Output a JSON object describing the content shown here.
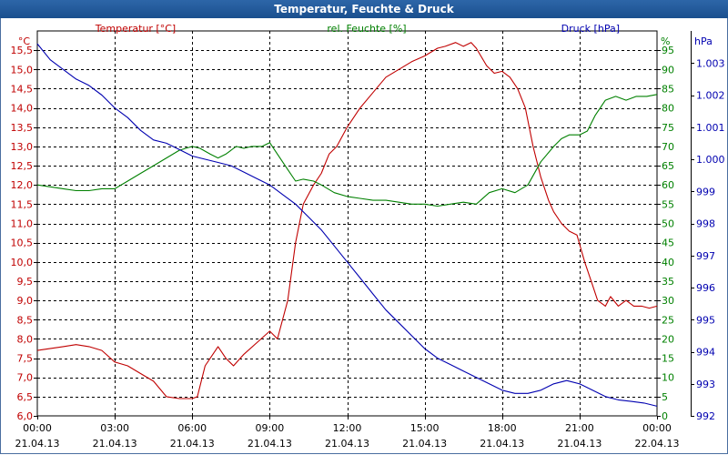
{
  "window": {
    "title": "Temperatur, Feuchte & Druck"
  },
  "colors": {
    "temperature": "#c00000",
    "humidity": "#008000",
    "pressure": "#0000b0",
    "grid": "#000000"
  },
  "chart_data": {
    "type": "line",
    "title": "Temperatur, Feuchte & Druck",
    "x_labels": [
      {
        "time": "00:00",
        "date": "21.04.13"
      },
      {
        "time": "03:00",
        "date": "21.04.13"
      },
      {
        "time": "06:00",
        "date": "21.04.13"
      },
      {
        "time": "09:00",
        "date": "21.04.13"
      },
      {
        "time": "12:00",
        "date": "21.04.13"
      },
      {
        "time": "15:00",
        "date": "21.04.13"
      },
      {
        "time": "18:00",
        "date": "21.04.13"
      },
      {
        "time": "21:00",
        "date": "21.04.13"
      },
      {
        "time": "00:00",
        "date": "22.04.13"
      }
    ],
    "xlim": [
      0,
      24
    ],
    "axes": {
      "temperature": {
        "label": "Temperatur [°C]",
        "unit": "°C",
        "range": [
          6.0,
          16.0
        ],
        "ticks": [
          "15,5",
          "15,0",
          "14,5",
          "14,0",
          "13,5",
          "13,0",
          "12,5",
          "12,0",
          "11,5",
          "11,0",
          "10,5",
          "10,0",
          "9,5",
          "9,0",
          "8,5",
          "8,0",
          "7,5",
          "7,0",
          "6,5",
          "6,0"
        ]
      },
      "humidity": {
        "label": "rel. Feuchte [%]",
        "unit": "%",
        "range": [
          0,
          100
        ],
        "ticks": [
          "95",
          "90",
          "85",
          "80",
          "75",
          "70",
          "65",
          "60",
          "55",
          "50",
          "45",
          "40",
          "35",
          "30",
          "25",
          "20",
          "15",
          "10",
          "5",
          "0"
        ]
      },
      "pressure": {
        "label": "Druck [hPa]",
        "unit": "hPa",
        "range": [
          992,
          1004
        ],
        "ticks": [
          "1.003",
          "1.002",
          "1.001",
          "1.000",
          "999",
          "998",
          "997",
          "996",
          "995",
          "994",
          "993",
          "992"
        ]
      }
    },
    "series": [
      {
        "name": "Temperatur [°C]",
        "axis": "temperature",
        "x": [
          0,
          1,
          1.5,
          2,
          2.5,
          3,
          3.5,
          4,
          4.5,
          5,
          5.5,
          6,
          6.2,
          6.5,
          7,
          7.3,
          7.6,
          8,
          8.5,
          9,
          9.3,
          9.7,
          10,
          10.3,
          10.7,
          11,
          11.3,
          11.6,
          12,
          12.5,
          13,
          13.5,
          14,
          14.5,
          15,
          15.5,
          15.8,
          16.2,
          16.5,
          16.8,
          17,
          17.4,
          17.7,
          18,
          18.3,
          18.6,
          18.9,
          19.2,
          19.5,
          19.8,
          20,
          20.3,
          20.6,
          20.9,
          21.2,
          21.5,
          21.7,
          22,
          22.2,
          22.5,
          22.8,
          23.1,
          23.4,
          23.7,
          24
        ],
        "values": [
          7.7,
          7.8,
          7.85,
          7.8,
          7.7,
          7.4,
          7.3,
          7.1,
          6.9,
          6.5,
          6.45,
          6.45,
          6.5,
          7.3,
          7.8,
          7.5,
          7.3,
          7.6,
          7.9,
          8.2,
          8.0,
          9.0,
          10.5,
          11.5,
          12.0,
          12.3,
          12.8,
          13.0,
          13.5,
          14.0,
          14.4,
          14.8,
          15.0,
          15.2,
          15.35,
          15.55,
          15.6,
          15.7,
          15.6,
          15.7,
          15.55,
          15.1,
          14.9,
          14.95,
          14.8,
          14.5,
          14.0,
          13.0,
          12.2,
          11.6,
          11.3,
          11.0,
          10.8,
          10.7,
          10.0,
          9.4,
          9.0,
          8.85,
          9.1,
          8.85,
          9.0,
          8.85,
          8.85,
          8.8,
          8.85
        ]
      },
      {
        "name": "rel. Feuchte [%]",
        "axis": "humidity",
        "x": [
          0,
          1,
          1.5,
          2,
          2.5,
          3,
          3.5,
          4,
          4.5,
          5,
          5.5,
          6,
          6.3,
          6.7,
          7,
          7.3,
          7.7,
          8,
          8.3,
          8.7,
          9,
          9.3,
          9.7,
          10,
          10.3,
          10.7,
          11,
          11.5,
          12,
          12.5,
          13,
          13.5,
          14,
          14.5,
          15,
          15.5,
          16,
          16.5,
          17,
          17.5,
          18,
          18.5,
          19,
          19.5,
          20,
          20.3,
          20.6,
          21,
          21.3,
          21.6,
          22,
          22.4,
          22.8,
          23.2,
          23.6,
          24
        ],
        "values": [
          60,
          59,
          58.5,
          58.5,
          59,
          59,
          61,
          63,
          65,
          67,
          69,
          70,
          69.5,
          68,
          67,
          68,
          70,
          69.5,
          70,
          70,
          71,
          68,
          64,
          61,
          61.5,
          61,
          60,
          58,
          57,
          56.5,
          56,
          56,
          55.5,
          55,
          55,
          54.5,
          55,
          55.5,
          55,
          58,
          59,
          58,
          60,
          66,
          70,
          72,
          73,
          73,
          74,
          78,
          82,
          83,
          82,
          83,
          83,
          83.5
        ]
      },
      {
        "name": "Druck [hPa]",
        "axis": "pressure",
        "x": [
          0,
          0.5,
          1,
          1.5,
          2,
          2.5,
          3,
          3.5,
          4,
          4.5,
          5,
          5.5,
          6,
          6.5,
          7,
          7.5,
          8,
          8.5,
          9,
          9.5,
          10,
          10.5,
          11,
          11.5,
          12,
          12.5,
          13,
          13.5,
          14,
          14.5,
          15,
          15.5,
          16,
          16.5,
          17,
          17.5,
          18,
          18.5,
          19,
          19.5,
          20,
          20.5,
          21,
          21.5,
          22,
          22.5,
          23,
          23.5,
          24
        ],
        "values": [
          1003.6,
          1003.1,
          1002.8,
          1002.5,
          1002.3,
          1002.0,
          1001.6,
          1001.3,
          1000.9,
          1000.6,
          1000.5,
          1000.3,
          1000.1,
          1000.0,
          999.9,
          999.8,
          999.6,
          999.4,
          999.2,
          998.9,
          998.6,
          998.2,
          997.8,
          997.3,
          996.8,
          996.3,
          995.8,
          995.3,
          994.9,
          994.5,
          994.1,
          993.8,
          993.6,
          993.4,
          993.2,
          993.0,
          992.8,
          992.7,
          992.7,
          992.8,
          993.0,
          993.1,
          993.0,
          992.8,
          992.6,
          992.5,
          992.45,
          992.4,
          992.3
        ]
      }
    ]
  }
}
